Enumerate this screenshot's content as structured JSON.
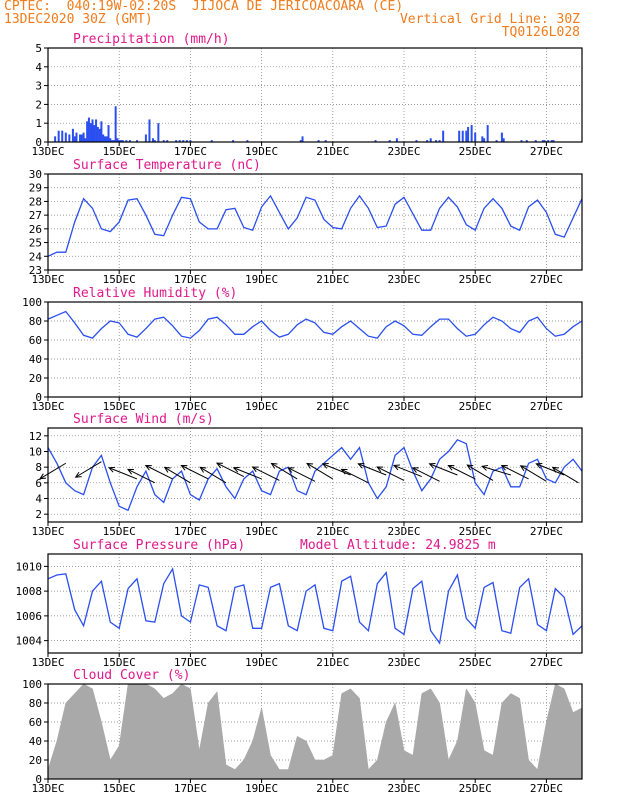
{
  "header": {
    "line1": "CPTEC:  040:19W-02:20S  JIJOCA DE JERICOACOARA (CE)",
    "line2_left": "13DEC2020 30Z (GMT)",
    "line2_right": "Vertical Grid Line: 30Z",
    "line3_right": "TQ0126L028"
  },
  "colors": {
    "header": "#f07c1c",
    "title": "#e0198c",
    "series": "#2a4ef0",
    "cloud": "#a9a9a9",
    "grid": "#7a7a7a",
    "arrows": "#000000"
  },
  "chart_data": [
    {
      "type": "bar",
      "title": "Precipitation (mm/h)",
      "x_tick_labels": [
        "13DEC",
        "15DEC",
        "17DEC",
        "19DEC",
        "21DEC",
        "23DEC",
        "25DEC",
        "27DEC"
      ],
      "ylim": [
        0,
        5
      ],
      "y_ticks": [
        0,
        1,
        2,
        3,
        4,
        5
      ],
      "grid": true,
      "x": [
        0.4,
        0.6,
        0.8,
        1.0,
        1.2,
        1.4,
        1.5,
        1.6,
        1.8,
        1.9,
        2.0,
        2.1,
        2.2,
        2.3,
        2.4,
        2.5,
        2.6,
        2.7,
        2.8,
        2.9,
        3.0,
        3.1,
        3.2,
        3.3,
        3.4,
        3.5,
        3.6,
        3.7,
        3.8,
        3.9,
        4.0,
        4.1,
        4.2,
        4.4,
        4.6,
        5.0,
        5.5,
        5.7,
        5.9,
        6.0,
        6.2,
        6.5,
        6.7,
        7.2,
        7.4,
        7.6,
        7.8,
        8.0,
        9.2,
        10.4,
        11.2,
        14.2,
        14.3,
        15.2,
        15.6,
        18.4,
        19.2,
        19.6,
        20.7,
        21.3,
        21.5,
        21.8,
        22.0,
        22.2,
        23.1,
        23.3,
        23.5,
        23.6,
        23.8,
        24.0,
        24.4,
        24.5,
        24.7,
        25.2,
        25.5,
        25.6,
        26.6,
        26.9,
        27.4,
        27.8,
        27.9,
        28.1,
        28.3,
        28.4
      ],
      "values": [
        0.3,
        0.6,
        0.6,
        0.5,
        0.4,
        0.7,
        0.3,
        0.5,
        0.4,
        0.4,
        0.5,
        0.2,
        1.1,
        1.3,
        1.0,
        1.2,
        0.9,
        1.2,
        0.8,
        0.7,
        1.1,
        0.4,
        0.3,
        0.3,
        0.9,
        0.2,
        0.1,
        0.1,
        1.9,
        0.2,
        0.1,
        0.1,
        0.1,
        0.1,
        0.1,
        0.1,
        0.4,
        1.2,
        0.2,
        0.1,
        1.0,
        0.1,
        0.1,
        0.1,
        0.1,
        0.1,
        0.1,
        0.1,
        0.1,
        0.1,
        0.1,
        0.1,
        0.3,
        0.1,
        0.1,
        0.1,
        0.1,
        0.2,
        0.1,
        0.1,
        0.2,
        0.1,
        0.1,
        0.6,
        0.6,
        0.6,
        0.6,
        0.8,
        0.9,
        0.5,
        0.3,
        0.2,
        0.9,
        0.1,
        0.5,
        0.2,
        0.1,
        0.1,
        0.1,
        0.1,
        0.1,
        0.1,
        0.1,
        0.1
      ]
    },
    {
      "type": "line",
      "title": "Surface Temperature (nC)",
      "x_tick_labels": [
        "13DEC",
        "15DEC",
        "17DEC",
        "19DEC",
        "21DEC",
        "23DEC",
        "25DEC",
        "27DEC"
      ],
      "ylim": [
        23,
        30
      ],
      "y_ticks": [
        23,
        24,
        25,
        26,
        27,
        28,
        29,
        30
      ],
      "grid": true,
      "x": [
        0.0,
        0.5,
        1.0,
        1.5,
        2.0,
        2.5,
        3.0,
        3.5,
        4.0,
        4.5,
        5.0,
        5.5,
        6.0,
        6.5,
        7.0,
        7.5,
        8.0,
        8.5,
        9.0,
        9.5,
        10.0,
        10.5,
        11.0,
        11.5,
        12.0,
        12.5,
        13.0,
        13.5,
        14.0,
        14.5,
        15.0,
        15.5,
        16.0,
        16.5,
        17.0,
        17.5,
        18.0,
        18.5,
        19.0,
        19.5,
        20.0,
        20.5,
        21.0,
        21.5,
        22.0,
        22.5,
        23.0,
        23.5,
        24.0,
        24.5,
        25.0,
        25.5,
        26.0,
        26.5,
        27.0,
        27.5,
        28.0,
        28.5,
        29.0,
        29.5,
        30.0
      ],
      "values": [
        24.0,
        24.3,
        24.3,
        26.5,
        28.2,
        27.5,
        26.0,
        25.8,
        26.5,
        28.1,
        28.2,
        27.0,
        25.6,
        25.5,
        27.0,
        28.3,
        28.2,
        26.5,
        26.0,
        26.0,
        27.4,
        27.5,
        26.1,
        25.9,
        27.6,
        28.4,
        27.2,
        26.0,
        26.8,
        28.3,
        28.1,
        26.7,
        26.1,
        26.0,
        27.5,
        28.4,
        27.5,
        26.1,
        26.2,
        27.8,
        28.3,
        27.1,
        25.9,
        25.9,
        27.5,
        28.3,
        27.6,
        26.3,
        25.9,
        27.5,
        28.2,
        27.5,
        26.2,
        25.9,
        27.6,
        28.1,
        27.2,
        25.6,
        25.4,
        26.8,
        28.2
      ]
    },
    {
      "type": "line",
      "title": "Relative Humidity (%)",
      "x_tick_labels": [
        "13DEC",
        "15DEC",
        "17DEC",
        "19DEC",
        "21DEC",
        "23DEC",
        "25DEC",
        "27DEC"
      ],
      "ylim": [
        0,
        100
      ],
      "y_ticks": [
        0,
        20,
        40,
        60,
        80,
        100
      ],
      "grid": true,
      "x": [
        0.0,
        0.5,
        1.0,
        1.5,
        2.0,
        2.5,
        3.0,
        3.5,
        4.0,
        4.5,
        5.0,
        5.5,
        6.0,
        6.5,
        7.0,
        7.5,
        8.0,
        8.5,
        9.0,
        9.5,
        10.0,
        10.5,
        11.0,
        11.5,
        12.0,
        12.5,
        13.0,
        13.5,
        14.0,
        14.5,
        15.0,
        15.5,
        16.0,
        16.5,
        17.0,
        17.5,
        18.0,
        18.5,
        19.0,
        19.5,
        20.0,
        20.5,
        21.0,
        21.5,
        22.0,
        22.5,
        23.0,
        23.5,
        24.0,
        24.5,
        25.0,
        25.5,
        26.0,
        26.5,
        27.0,
        27.5,
        28.0,
        28.5,
        29.0,
        29.5,
        30.0
      ],
      "values": [
        82,
        86,
        90,
        78,
        65,
        62,
        72,
        80,
        78,
        66,
        63,
        72,
        82,
        84,
        75,
        64,
        62,
        70,
        82,
        84,
        76,
        66,
        66,
        74,
        80,
        70,
        63,
        66,
        76,
        82,
        78,
        68,
        66,
        74,
        80,
        72,
        64,
        62,
        74,
        80,
        75,
        66,
        65,
        74,
        82,
        82,
        72,
        64,
        66,
        76,
        84,
        80,
        72,
        68,
        80,
        84,
        72,
        64,
        66,
        74,
        80
      ]
    },
    {
      "type": "line",
      "title": "Surface Wind (m/s)",
      "x_tick_labels": [
        "13DEC",
        "15DEC",
        "17DEC",
        "19DEC",
        "21DEC",
        "23DEC",
        "25DEC",
        "27DEC"
      ],
      "ylim": [
        1,
        13
      ],
      "y_ticks": [
        2,
        4,
        6,
        8,
        10,
        12
      ],
      "grid": true,
      "x": [
        0.0,
        0.5,
        1.0,
        1.5,
        2.0,
        2.5,
        3.0,
        3.5,
        4.0,
        4.5,
        5.0,
        5.5,
        6.0,
        6.5,
        7.0,
        7.5,
        8.0,
        8.5,
        9.0,
        9.5,
        10.0,
        10.5,
        11.0,
        11.5,
        12.0,
        12.5,
        13.0,
        13.5,
        14.0,
        14.5,
        15.0,
        15.5,
        16.0,
        16.5,
        17.0,
        17.5,
        18.0,
        18.5,
        19.0,
        19.5,
        20.0,
        20.5,
        21.0,
        21.5,
        22.0,
        22.5,
        23.0,
        23.5,
        24.0,
        24.5,
        25.0,
        25.5,
        26.0,
        26.5,
        27.0,
        27.5,
        28.0,
        28.5,
        29.0,
        29.5,
        30.0
      ],
      "values": [
        10.5,
        8.5,
        6.0,
        5.0,
        4.5,
        8.0,
        9.5,
        6.0,
        3.0,
        2.5,
        5.5,
        7.5,
        4.5,
        3.5,
        6.5,
        7.5,
        4.5,
        3.8,
        6.5,
        7.8,
        5.5,
        4.0,
        6.5,
        7.5,
        5.0,
        4.5,
        7.5,
        8.0,
        5.0,
        4.5,
        7.5,
        8.5,
        9.5,
        10.5,
        9.0,
        10.5,
        6.0,
        4.0,
        5.5,
        9.5,
        10.5,
        7.5,
        5.0,
        6.5,
        9.0,
        10.0,
        11.5,
        11.0,
        6.0,
        4.5,
        7.5,
        8.0,
        5.5,
        5.5,
        8.5,
        9.0,
        6.5,
        6.0,
        8.0,
        9.0,
        7.5
      ],
      "arrows": [
        {
          "x": 1.0,
          "y": 8.5,
          "u": -1.0,
          "v": -0.6
        },
        {
          "x": 3.0,
          "y": 8.7,
          "u": -1.0,
          "v": -0.6
        },
        {
          "x": 5.0,
          "y": 6.5,
          "u": -1.0,
          "v": 0.4
        },
        {
          "x": 6.0,
          "y": 6.0,
          "u": -1.0,
          "v": 0.5
        },
        {
          "x": 7.0,
          "y": 6.5,
          "u": -1.0,
          "v": 0.5
        },
        {
          "x": 8.0,
          "y": 6.0,
          "u": -1.0,
          "v": 0.6
        },
        {
          "x": 9.0,
          "y": 6.5,
          "u": -1.0,
          "v": 0.5
        },
        {
          "x": 10.0,
          "y": 6.0,
          "u": -1.0,
          "v": 0.6
        },
        {
          "x": 11.0,
          "y": 6.8,
          "u": -1.0,
          "v": 0.5
        },
        {
          "x": 12.0,
          "y": 6.5,
          "u": -1.0,
          "v": 0.4
        },
        {
          "x": 13.0,
          "y": 6.3,
          "u": -1.0,
          "v": 0.5
        },
        {
          "x": 14.0,
          "y": 6.5,
          "u": -1.0,
          "v": 0.6
        },
        {
          "x": 15.0,
          "y": 6.2,
          "u": -1.0,
          "v": 0.5
        },
        {
          "x": 16.0,
          "y": 6.5,
          "u": -1.0,
          "v": 0.6
        },
        {
          "x": 17.0,
          "y": 7.0,
          "u": -1.0,
          "v": 0.4
        },
        {
          "x": 18.0,
          "y": 6.0,
          "u": -1.0,
          "v": 0.5
        },
        {
          "x": 19.0,
          "y": 7.0,
          "u": -1.0,
          "v": 0.4
        },
        {
          "x": 20.0,
          "y": 6.3,
          "u": -1.0,
          "v": 0.5
        },
        {
          "x": 21.0,
          "y": 6.8,
          "u": -1.0,
          "v": 0.4
        },
        {
          "x": 22.0,
          "y": 6.2,
          "u": -1.0,
          "v": 0.5
        },
        {
          "x": 23.0,
          "y": 7.0,
          "u": -1.0,
          "v": 0.4
        },
        {
          "x": 24.0,
          "y": 6.5,
          "u": -1.0,
          "v": 0.5
        },
        {
          "x": 25.0,
          "y": 6.3,
          "u": -1.0,
          "v": 0.6
        },
        {
          "x": 26.0,
          "y": 7.0,
          "u": -1.0,
          "v": 0.3
        },
        {
          "x": 27.0,
          "y": 6.5,
          "u": -1.0,
          "v": 0.5
        },
        {
          "x": 28.0,
          "y": 6.2,
          "u": -1.0,
          "v": 0.6
        },
        {
          "x": 29.0,
          "y": 7.0,
          "u": -1.0,
          "v": 0.4
        },
        {
          "x": 29.8,
          "y": 6.0,
          "u": -1.0,
          "v": 0.6
        }
      ]
    },
    {
      "type": "line",
      "title": "Surface Pressure (hPa)",
      "annotation": "Model Altitude: 24.9825 m",
      "x_tick_labels": [
        "13DEC",
        "15DEC",
        "17DEC",
        "19DEC",
        "21DEC",
        "23DEC",
        "25DEC",
        "27DEC"
      ],
      "ylim": [
        1003,
        1011
      ],
      "y_ticks": [
        1004,
        1006,
        1008,
        1010
      ],
      "grid": true,
      "x": [
        0.0,
        0.5,
        1.0,
        1.5,
        2.0,
        2.5,
        3.0,
        3.5,
        4.0,
        4.5,
        5.0,
        5.5,
        6.0,
        6.5,
        7.0,
        7.5,
        8.0,
        8.5,
        9.0,
        9.5,
        10.0,
        10.5,
        11.0,
        11.5,
        12.0,
        12.5,
        13.0,
        13.5,
        14.0,
        14.5,
        15.0,
        15.5,
        16.0,
        16.5,
        17.0,
        17.5,
        18.0,
        18.5,
        19.0,
        19.5,
        20.0,
        20.5,
        21.0,
        21.5,
        22.0,
        22.5,
        23.0,
        23.5,
        24.0,
        24.5,
        25.0,
        25.5,
        26.0,
        26.5,
        27.0,
        27.5,
        28.0,
        28.5,
        29.0,
        29.5,
        30.0
      ],
      "values": [
        1009.0,
        1009.3,
        1009.4,
        1006.5,
        1005.2,
        1008.0,
        1008.8,
        1005.5,
        1005.0,
        1008.2,
        1009.0,
        1005.6,
        1005.5,
        1008.6,
        1009.8,
        1006.0,
        1005.5,
        1008.5,
        1008.3,
        1005.2,
        1004.8,
        1008.3,
        1008.5,
        1005.0,
        1005.0,
        1008.3,
        1008.6,
        1005.2,
        1004.8,
        1008.0,
        1008.5,
        1005.0,
        1004.8,
        1008.8,
        1009.2,
        1005.5,
        1004.8,
        1008.6,
        1009.5,
        1005.0,
        1004.5,
        1008.2,
        1008.8,
        1004.8,
        1003.8,
        1008.0,
        1009.3,
        1005.8,
        1005.0,
        1008.3,
        1008.7,
        1004.8,
        1004.6,
        1008.3,
        1009.0,
        1005.3,
        1004.8,
        1008.2,
        1007.5,
        1004.5,
        1005.2
      ]
    },
    {
      "type": "area",
      "title": "Cloud Cover (%)",
      "x_tick_labels": [
        "13DEC",
        "15DEC",
        "17DEC",
        "19DEC",
        "21DEC",
        "23DEC",
        "25DEC",
        "27DEC"
      ],
      "ylim": [
        0,
        100
      ],
      "y_ticks": [
        0,
        20,
        40,
        60,
        80,
        100
      ],
      "grid": true,
      "x": [
        0.0,
        0.5,
        1.0,
        1.5,
        2.0,
        2.5,
        3.0,
        3.5,
        4.0,
        4.5,
        5.0,
        5.5,
        6.0,
        6.5,
        7.0,
        7.5,
        8.0,
        8.5,
        9.0,
        9.5,
        10.0,
        10.5,
        11.0,
        11.5,
        12.0,
        12.5,
        13.0,
        13.5,
        14.0,
        14.5,
        15.0,
        15.5,
        16.0,
        16.5,
        17.0,
        17.5,
        18.0,
        18.5,
        19.0,
        19.5,
        20.0,
        20.5,
        21.0,
        21.5,
        22.0,
        22.5,
        23.0,
        23.5,
        24.0,
        24.5,
        25.0,
        25.5,
        26.0,
        26.5,
        27.0,
        27.5,
        28.0,
        28.5,
        29.0,
        29.5,
        30.0
      ],
      "values": [
        10,
        40,
        80,
        90,
        100,
        95,
        60,
        20,
        35,
        100,
        100,
        100,
        95,
        85,
        90,
        100,
        95,
        30,
        80,
        92,
        15,
        10,
        20,
        40,
        75,
        25,
        10,
        10,
        45,
        40,
        20,
        20,
        25,
        90,
        95,
        85,
        10,
        20,
        60,
        80,
        30,
        25,
        90,
        95,
        80,
        20,
        40,
        95,
        80,
        30,
        25,
        80,
        90,
        85,
        20,
        10,
        60,
        100,
        95,
        70,
        75
      ]
    }
  ]
}
